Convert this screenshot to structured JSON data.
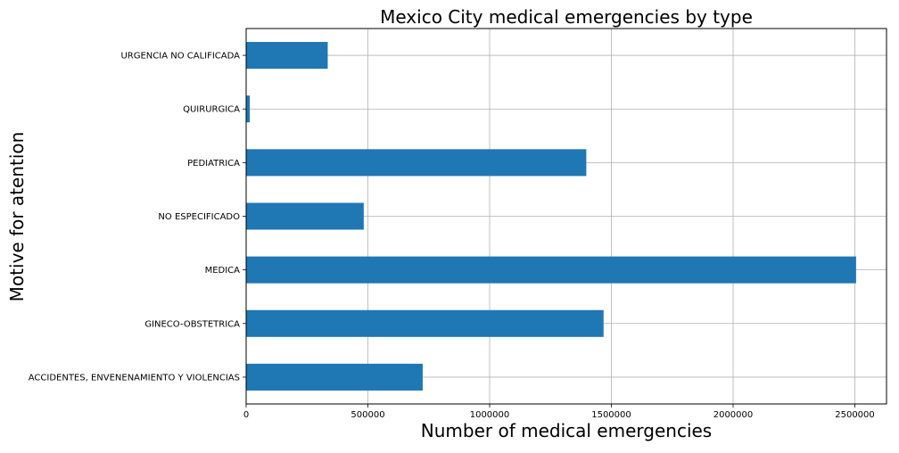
{
  "chart_data": {
    "type": "bar",
    "orientation": "horizontal",
    "title": "Mexico City medical emergencies by type",
    "xlabel": "Number of medical emergencies",
    "ylabel": "Motive for atention",
    "categories": [
      "ACCIDENTES, ENVENENAMIENTO Y VIOLENCIAS",
      "GINECO-OBSTETRICA",
      "MEDICA",
      "NO ESPECIFICADO",
      "PEDIATRICA",
      "QUIRURGICA",
      "URGENCIA NO CALIFICADA"
    ],
    "values": [
      725000,
      1468000,
      2505000,
      483000,
      1397000,
      15000,
      335000
    ],
    "xlim": [
      0,
      2630000
    ],
    "xticks": [
      0,
      500000,
      1000000,
      1500000,
      2000000,
      2500000
    ],
    "xtick_labels": [
      "0",
      "500000",
      "1000000",
      "1500000",
      "2000000",
      "2500000"
    ],
    "grid": true,
    "bar_color": "#1f77b4",
    "grid_color": "#b0b0b0",
    "legend": "none"
  }
}
